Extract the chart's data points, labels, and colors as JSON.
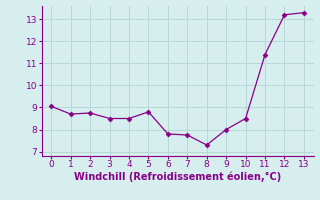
{
  "x": [
    0,
    1,
    2,
    3,
    4,
    5,
    6,
    7,
    8,
    9,
    10,
    11,
    12,
    13
  ],
  "y": [
    9.05,
    8.7,
    8.75,
    8.5,
    8.5,
    8.8,
    7.8,
    7.75,
    7.3,
    8.0,
    8.5,
    11.4,
    13.2,
    13.3
  ],
  "line_color": "#880088",
  "marker": "D",
  "marker_size": 2.5,
  "background_color": "#d6eeee",
  "grid_color": "#b8d8d8",
  "xlabel": "Windchill (Refroidissement éolien,°C)",
  "xlabel_color": "#880088",
  "xlabel_fontsize": 7,
  "tick_color": "#880088",
  "tick_fontsize": 6.5,
  "ylim": [
    6.8,
    13.6
  ],
  "xlim": [
    -0.5,
    13.5
  ],
  "yticks": [
    7,
    8,
    9,
    10,
    11,
    12,
    13
  ],
  "xticks": [
    0,
    1,
    2,
    3,
    4,
    5,
    6,
    7,
    8,
    9,
    10,
    11,
    12,
    13
  ],
  "spine_color": "#880088"
}
